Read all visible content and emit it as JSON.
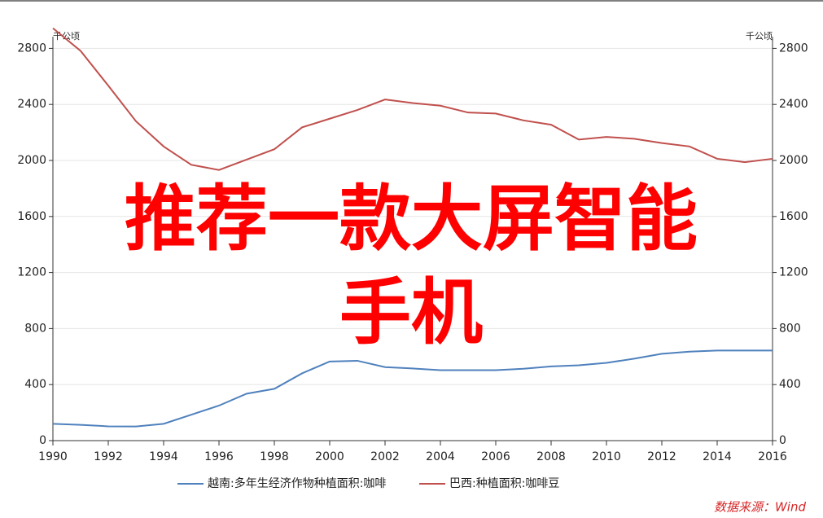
{
  "chart_data": {
    "type": "line",
    "y_unit_left": "千公顷",
    "y_unit_right": "千公顷",
    "x": [
      1990,
      1991,
      1992,
      1993,
      1994,
      1995,
      1996,
      1997,
      1998,
      1999,
      2000,
      2001,
      2002,
      2003,
      2004,
      2005,
      2006,
      2007,
      2008,
      2009,
      2010,
      2011,
      2012,
      2013,
      2014,
      2015,
      2016
    ],
    "xlim": [
      1990,
      2016
    ],
    "xticks": [
      1990,
      1992,
      1994,
      1996,
      1998,
      2000,
      2002,
      2004,
      2006,
      2008,
      2010,
      2012,
      2014,
      2016
    ],
    "ylim": [
      0,
      3000
    ],
    "yticks": [
      0,
      400,
      800,
      1200,
      1600,
      2000,
      2400,
      2800
    ],
    "y2lim": [
      0,
      3000
    ],
    "y2ticks": [
      0,
      400,
      800,
      1200,
      1600,
      2000,
      2400,
      2800
    ],
    "grid": true,
    "series": [
      {
        "name": "越南:多年生经济作物种植面积:咖啡",
        "color": "#4f81bd",
        "values": [
          120,
          113,
          102,
          101,
          120,
          185,
          250,
          335,
          370,
          480,
          565,
          570,
          525,
          515,
          503,
          503,
          503,
          513,
          530,
          538,
          555,
          585,
          620,
          635,
          643,
          643,
          643
        ]
      },
      {
        "name": "巴西:种植面积:咖啡豆",
        "color": "#c0504d",
        "values": [
          2944,
          2782,
          2534,
          2280,
          2100,
          1969,
          1932,
          2006,
          2080,
          2236,
          2298,
          2360,
          2435,
          2410,
          2391,
          2342,
          2335,
          2286,
          2255,
          2149,
          2168,
          2155,
          2124,
          2100,
          2012,
          1988,
          2012
        ]
      }
    ],
    "source": "数据来源：Wind",
    "overlay_lines": [
      "推荐一款大屏智能",
      "手机"
    ]
  }
}
